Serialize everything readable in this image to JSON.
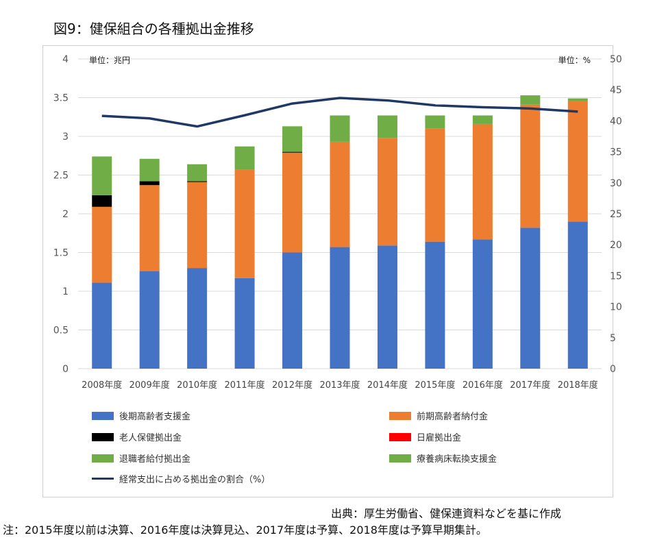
{
  "title": "図9：健保組合の各種拠出金推移",
  "source": "出典：厚生労働省、健保連資料などを基に作成",
  "note": "注：2015年度以前は決算、2016年度は決算見込、2017年度は予算、2018年度は予算早期集計。",
  "chart_data": {
    "type": "bar",
    "stacked": true,
    "left_unit": "単位：兆円",
    "right_unit": "単位：%",
    "ylim_left": [
      0,
      4
    ],
    "yticks_left": [
      "0",
      "0.5",
      "1",
      "1.5",
      "2",
      "2.5",
      "3",
      "3.5",
      "4"
    ],
    "ylim_right": [
      0,
      50
    ],
    "yticks_right": [
      "0",
      "5",
      "10",
      "15",
      "20",
      "25",
      "30",
      "35",
      "40",
      "45",
      "50"
    ],
    "categories": [
      "2008年度",
      "2009年度",
      "2010年度",
      "2011年度",
      "2012年度",
      "2013年度",
      "2014年度",
      "2015年度",
      "2016年度",
      "2017年度",
      "2018年度"
    ],
    "series": [
      {
        "name": "後期高齢者支援金",
        "color": "#4472C4",
        "values": [
          1.11,
          1.26,
          1.3,
          1.17,
          1.5,
          1.57,
          1.59,
          1.64,
          1.67,
          1.82,
          1.9
        ]
      },
      {
        "name": "前期高齢者納付金",
        "color": "#ED7D31",
        "values": [
          0.98,
          1.11,
          1.11,
          1.4,
          1.29,
          1.36,
          1.39,
          1.46,
          1.49,
          1.59,
          1.56
        ]
      },
      {
        "name": "老人保健拠出金",
        "color": "#000000",
        "values": [
          0.15,
          0.05,
          0.01,
          0.0,
          0.01,
          0.0,
          0.0,
          0.0,
          0.0,
          0.0,
          0.0
        ]
      },
      {
        "name": "日雇拠出金",
        "color": "#FF0000",
        "values": [
          0.0,
          0.0,
          0.0,
          0.0,
          0.0,
          0.0,
          0.0,
          0.0,
          0.0,
          0.0,
          0.0
        ]
      },
      {
        "name": "退職者給付拠出金",
        "color": "#70AD47",
        "values": [
          0.5,
          0.29,
          0.22,
          0.3,
          0.33,
          0.34,
          0.29,
          0.17,
          0.11,
          0.12,
          0.03
        ]
      },
      {
        "name": "療養病床転換支援金",
        "color": "#70AD47",
        "values": [
          0.0,
          0.0,
          0.0,
          0.0,
          0.0,
          0.0,
          0.0,
          0.0,
          0.0,
          0.0,
          0.0
        ]
      }
    ],
    "line": {
      "name": "経常支出に占める拠出金の割合（%）",
      "color": "#203864",
      "axis": "right",
      "values": [
        40.8,
        40.4,
        39.1,
        40.9,
        42.8,
        43.7,
        43.3,
        42.5,
        42.2,
        42.0,
        41.5
      ]
    },
    "legend_position": "bottom"
  }
}
